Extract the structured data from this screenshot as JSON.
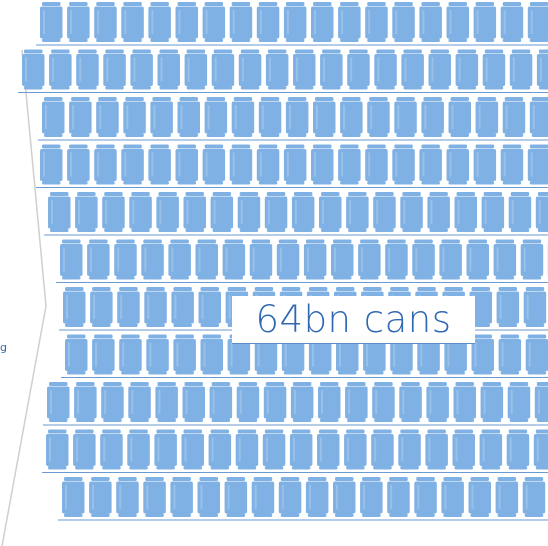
{
  "label": {
    "text": "64bn cans"
  },
  "cropped_text": "g",
  "colors": {
    "can_fill": "#80b1e4",
    "can_highlight": "#a9cbef",
    "row_line": "#6a9ad0",
    "label_text": "#2f68b0",
    "arrow_edge": "#c8c8c8"
  }
}
